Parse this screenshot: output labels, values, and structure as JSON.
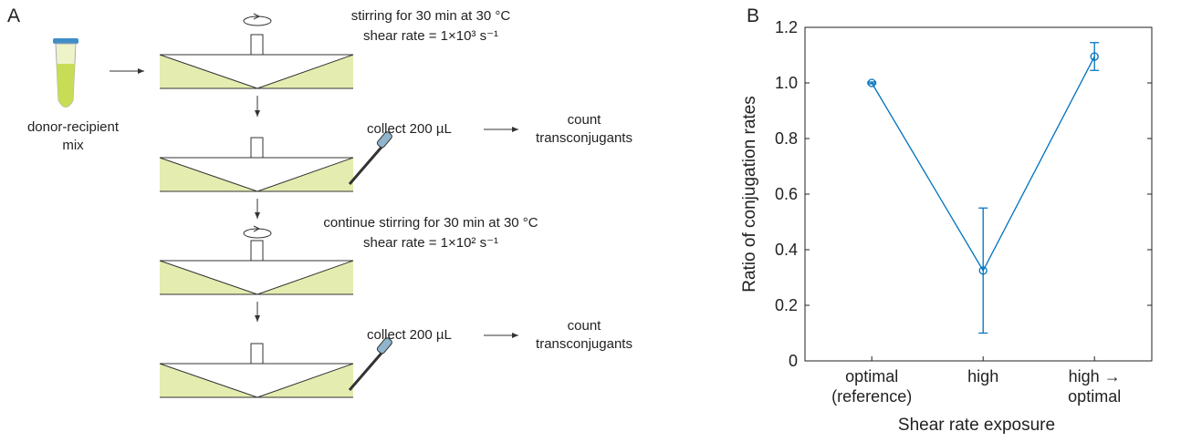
{
  "panel_a": {
    "label": "A",
    "mix_label": "donor-recipient\nmix",
    "stirring": [
      {
        "text": "stirring for 30 min at 30 °C",
        "shear": "shear rate = 1×10³ s⁻¹"
      },
      {
        "text": "continue stirring for 30 min at 30 °C",
        "shear": "shear rate = 1×10² s⁻¹"
      }
    ],
    "collect": [
      {
        "action": "collect 200 µL",
        "result": "count\ntransconjugants"
      },
      {
        "action": "collect 200 µL",
        "result": "count\ntransconjugants"
      }
    ]
  },
  "chart_data": {
    "type": "line",
    "panel_label": "B",
    "xlabel": "Shear rate exposure",
    "ylabel": "Ratio of conjugation rates",
    "categories": [
      "optimal\n(reference)",
      "high",
      "high → optimal"
    ],
    "values": [
      1.0,
      0.325,
      1.095
    ],
    "errors": [
      0.003,
      0.225,
      0.05
    ],
    "color": "#0072bd",
    "ylim": [
      0,
      1.2
    ],
    "yticks": [
      0,
      0.2,
      0.4,
      0.6,
      0.8,
      {
        "value": 1,
        "label": "1.0"
      },
      1.2
    ]
  }
}
